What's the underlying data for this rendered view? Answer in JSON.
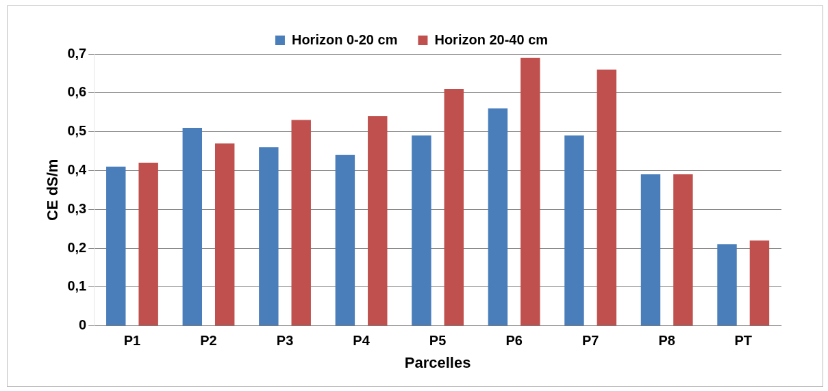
{
  "chart_data": {
    "type": "bar",
    "xlabel": "Parcelles",
    "ylabel": "CE dS/m",
    "categories": [
      "P1",
      "P2",
      "P3",
      "P4",
      "P5",
      "P6",
      "P7",
      "P8",
      "PT"
    ],
    "series": [
      {
        "name": "Horizon 0-20 cm",
        "color": "#4a7ebb",
        "values": [
          0.41,
          0.51,
          0.46,
          0.44,
          0.49,
          0.56,
          0.49,
          0.39,
          0.21
        ]
      },
      {
        "name": "Horizon 20-40 cm",
        "color": "#c0504d",
        "values": [
          0.42,
          0.47,
          0.53,
          0.54,
          0.61,
          0.69,
          0.66,
          0.39,
          0.22
        ]
      }
    ],
    "ylim": [
      0,
      0.7
    ],
    "yticks": [
      {
        "value": 0,
        "label": "0"
      },
      {
        "value": 0.1,
        "label": "0,1"
      },
      {
        "value": 0.2,
        "label": "0,2"
      },
      {
        "value": 0.3,
        "label": "0,3"
      },
      {
        "value": 0.4,
        "label": "0,4"
      },
      {
        "value": 0.5,
        "label": "0,5"
      },
      {
        "value": 0.6,
        "label": "0,6"
      },
      {
        "value": 0.7,
        "label": "0,7"
      }
    ],
    "grid": "y",
    "legend": "top"
  }
}
